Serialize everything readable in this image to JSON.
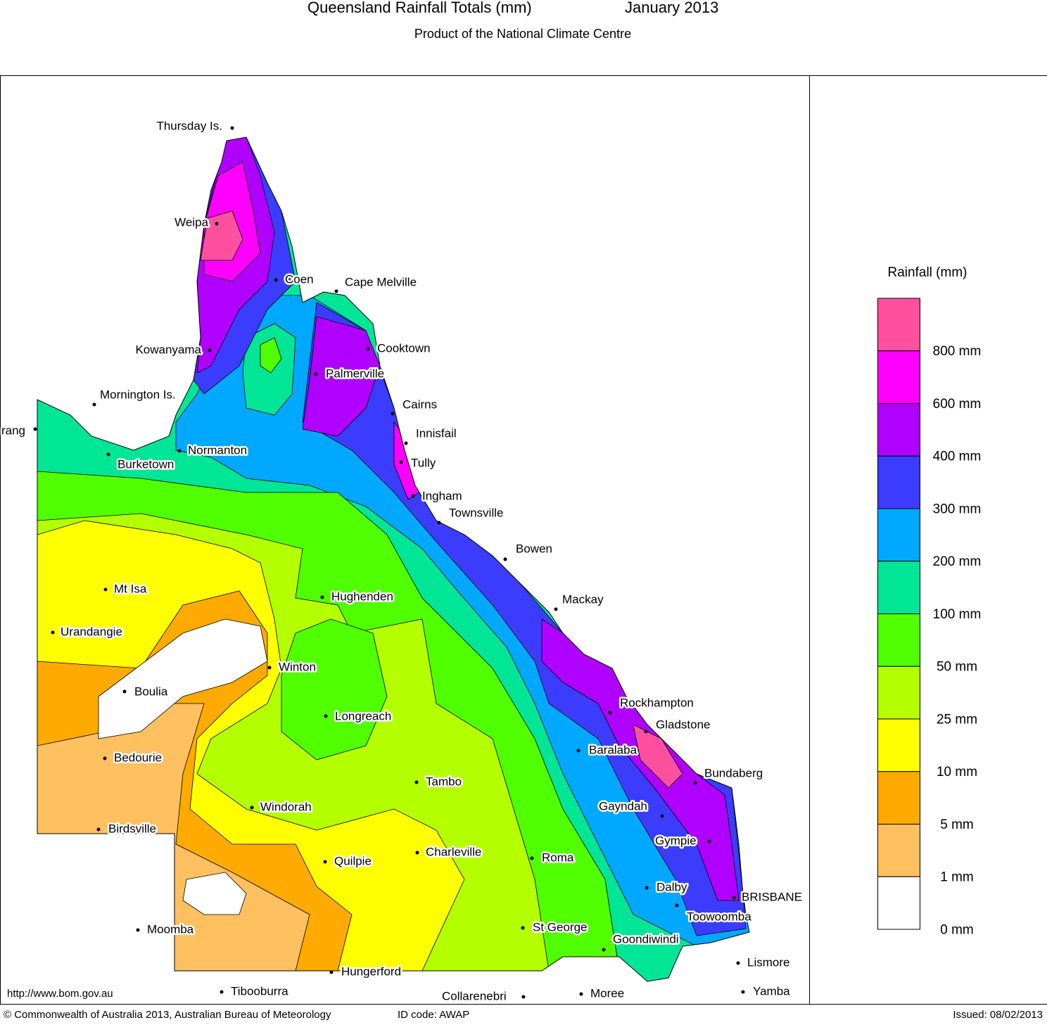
{
  "header": {
    "title": "Queensland Rainfall Totals (mm)",
    "period": "January 2013",
    "subtitle": "Product of the National Climate Centre"
  },
  "legend": {
    "title": "Rainfall (mm)",
    "items": [
      {
        "label": "800 mm",
        "color": "#ff50a0"
      },
      {
        "label": "600 mm",
        "color": "#ff00ff"
      },
      {
        "label": "400 mm",
        "color": "#b000ff"
      },
      {
        "label": "300 mm",
        "color": "#3c3cff"
      },
      {
        "label": "200 mm",
        "color": "#00a8ff"
      },
      {
        "label": "100 mm",
        "color": "#00e696"
      },
      {
        "label": "50 mm",
        "color": "#50ff00"
      },
      {
        "label": "25 mm",
        "color": "#b4ff00"
      },
      {
        "label": "10 mm",
        "color": "#ffff00"
      },
      {
        "label": "5 mm",
        "color": "#ffaa00"
      },
      {
        "label": "1 mm",
        "color": "#ffc060"
      },
      {
        "label": "0 mm",
        "color": "#ffffff"
      }
    ]
  },
  "towns": [
    "Thursday Is.",
    "Weipa",
    "Coen",
    "Cape Melville",
    "Kowanyama",
    "Cooktown",
    "Palmerville",
    "Mornington Is.",
    "rang",
    "Cairns",
    "Normanton",
    "Burketown",
    "Innisfail",
    "Tully",
    "Ingham",
    "Townsville",
    "Bowen",
    "Mackay",
    "Hughenden",
    "Mt Isa",
    "Urandangie",
    "Winton",
    "Boulia",
    "Rockhampton",
    "Gladstone",
    "Longreach",
    "Baralaba",
    "Bedourie",
    "Bundaberg",
    "Tambo",
    "Windorah",
    "Gayndah",
    "Birdsville",
    "Gympie",
    "Charleville",
    "Roma",
    "Quilpie",
    "Dalby",
    "BRISBANE",
    "Toowoomba",
    "St George",
    "Moomba",
    "Goondiwindi",
    "Lismore",
    "Hungerford",
    "Tibooburra",
    "Yamba",
    "Moree",
    "Collarenebri"
  ],
  "footer": {
    "url": "http://www.bom.gov.au",
    "copyright": "© Commonwealth of Australia 2013, Australian Bureau of Meteorology",
    "id_code": "ID code: AWAP",
    "issued": "Issued: 08/02/2013"
  }
}
